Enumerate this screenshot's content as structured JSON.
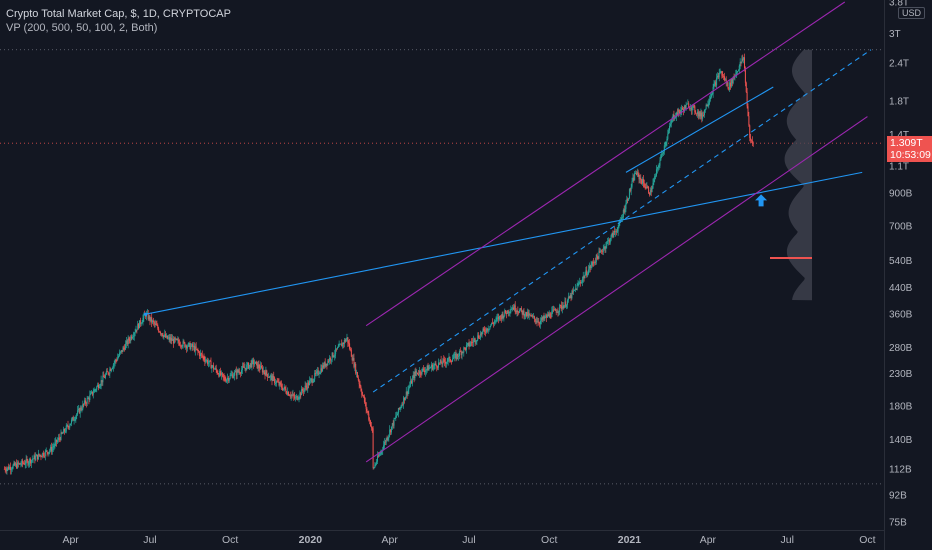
{
  "header": {
    "title": "Crypto Total Market Cap, $, 1D, CRYPTOCAP",
    "indicator": "VP (200, 500, 50, 100, 2, Both)"
  },
  "price_axis": {
    "currency": "USD",
    "last_price": "1.309T",
    "countdown": "10:53:09"
  },
  "colors": {
    "background": "#131722",
    "up": "#26a69a",
    "down": "#ef5350",
    "trend_blue": "#2196f3",
    "channel_purple": "#9c27b0",
    "volume_profile": "#434651",
    "text": "#b2b5be"
  },
  "chart_data": {
    "type": "candlestick",
    "title": "Crypto Total Market Cap, $, 1D, CRYPTOCAP",
    "y_scale": "log",
    "ylim": [
      75000000000,
      3800000000000
    ],
    "y_tick_labels": [
      "3.8T",
      "3T",
      "2.4T",
      "1.8T",
      "1.4T",
      "1.1T",
      "900B",
      "700B",
      "540B",
      "440B",
      "360B",
      "280B",
      "230B",
      "180B",
      "140B",
      "112B",
      "92B",
      "75B"
    ],
    "y_tick_values": [
      3800000000000,
      3000000000000,
      2400000000000,
      1800000000000,
      1400000000000,
      1100000000000,
      900000000000,
      700000000000,
      540000000000,
      440000000000,
      360000000000,
      280000000000,
      230000000000,
      180000000000,
      140000000000,
      112000000000,
      92000000000,
      75000000000
    ],
    "x_tick_labels": [
      "Apr",
      "Jul",
      "Oct",
      "2020",
      "Apr",
      "Jul",
      "Oct",
      "2021",
      "Apr",
      "Jul",
      "Oct"
    ],
    "x_tick_dates": [
      "2019-04-01",
      "2019-07-01",
      "2019-10-01",
      "2020-01-01",
      "2020-04-01",
      "2020-07-01",
      "2020-10-01",
      "2021-01-01",
      "2021-04-01",
      "2021-07-01",
      "2021-10-01"
    ],
    "x_range": [
      "2019-01-10",
      "2021-10-20"
    ],
    "last_price": 1309000000000,
    "price_path": [
      [
        "2019-01-15",
        112000000000
      ],
      [
        "2019-02-10",
        118000000000
      ],
      [
        "2019-03-10",
        130000000000
      ],
      [
        "2019-04-05",
        165000000000
      ],
      [
        "2019-05-15",
        235000000000
      ],
      [
        "2019-06-26",
        360000000000
      ],
      [
        "2019-07-20",
        300000000000
      ],
      [
        "2019-08-20",
        280000000000
      ],
      [
        "2019-09-25",
        220000000000
      ],
      [
        "2019-10-28",
        250000000000
      ],
      [
        "2019-12-15",
        190000000000
      ],
      [
        "2020-02-12",
        300000000000
      ],
      [
        "2020-03-12",
        150000000000
      ],
      [
        "2020-03-13",
        112000000000
      ],
      [
        "2020-04-30",
        230000000000
      ],
      [
        "2020-06-15",
        260000000000
      ],
      [
        "2020-07-30",
        340000000000
      ],
      [
        "2020-08-20",
        380000000000
      ],
      [
        "2020-09-20",
        340000000000
      ],
      [
        "2020-10-20",
        390000000000
      ],
      [
        "2020-11-20",
        530000000000
      ],
      [
        "2020-12-20",
        700000000000
      ],
      [
        "2021-01-08",
        1050000000000
      ],
      [
        "2021-01-25",
        900000000000
      ],
      [
        "2021-02-20",
        1600000000000
      ],
      [
        "2021-03-10",
        1750000000000
      ],
      [
        "2021-03-25",
        1600000000000
      ],
      [
        "2021-04-15",
        2250000000000
      ],
      [
        "2021-04-25",
        2000000000000
      ],
      [
        "2021-05-12",
        2500000000000
      ],
      [
        "2021-05-19",
        1350000000000
      ],
      [
        "2021-05-23",
        1309000000000
      ]
    ],
    "trendlines": [
      {
        "color": "blue",
        "style": "solid",
        "from": [
          "2019-06-26",
          360000000000
        ],
        "to": [
          "2021-09-25",
          1050000000000
        ]
      },
      {
        "color": "blue",
        "style": "solid",
        "from": [
          "2020-12-28",
          1050000000000
        ],
        "to": [
          "2021-06-15",
          2000000000000
        ]
      },
      {
        "color": "blue",
        "style": "dashed",
        "from": [
          "2020-03-13",
          200000000000
        ],
        "to": [
          "2021-10-05",
          2650000000000
        ]
      },
      {
        "color": "purple",
        "style": "solid",
        "from": [
          "2020-03-05",
          330000000000
        ],
        "to": [
          "2021-09-05",
          3800000000000
        ]
      },
      {
        "color": "purple",
        "style": "solid",
        "from": [
          "2020-03-05",
          118000000000
        ],
        "to": [
          "2021-10-01",
          1600000000000
        ]
      }
    ],
    "horizontal_levels": [
      2650000000000,
      1309000000000,
      100000000000
    ],
    "support_marker": {
      "value": 550000000000
    },
    "arrow": {
      "date": "2021-06-01",
      "value": 850000000000,
      "direction": "up"
    },
    "grid": false
  }
}
